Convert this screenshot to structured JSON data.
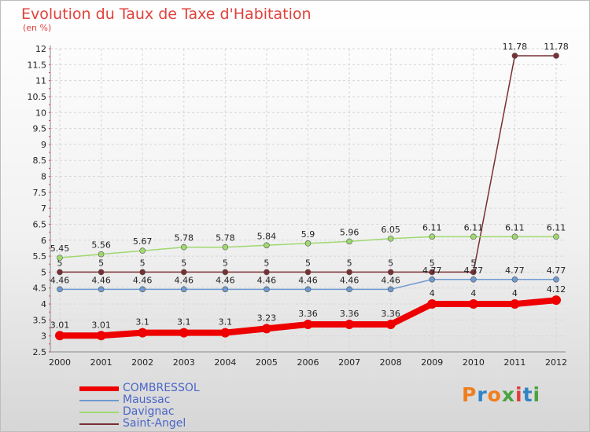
{
  "header": {
    "title": "Evolution du Taux de Taxe d'Habitation",
    "unit": "(en %)"
  },
  "logo": {
    "text": "Proxiti",
    "colors": [
      "#f07e1e",
      "#2f84c6",
      "#f07e1e",
      "#4aa33f",
      "#e23c3c",
      "#2f84c6",
      "#4aa33f"
    ]
  },
  "chart_data": {
    "type": "line",
    "x": [
      "2000",
      "2001",
      "2002",
      "2003",
      "2004",
      "2005",
      "2006",
      "2007",
      "2008",
      "2009",
      "2010",
      "2011",
      "2012"
    ],
    "yticks": [
      "2.5",
      "3",
      "3.5",
      "4",
      "4.5",
      "5",
      "5.5",
      "6",
      "6.5",
      "7",
      "7.5",
      "8",
      "8.5",
      "9",
      "9.5",
      "10",
      "10.5",
      "11",
      "11.5",
      "12"
    ],
    "ylim": [
      2.5,
      12
    ],
    "grid": true,
    "legend_position": "bottom-left",
    "series": [
      {
        "name": "COMBRESSOL",
        "color": "#ee0000",
        "width": 8,
        "marker": 6,
        "values": [
          3.01,
          3.01,
          3.1,
          3.1,
          3.1,
          3.23,
          3.36,
          3.36,
          3.36,
          4,
          4,
          4,
          4.12
        ],
        "labels": [
          "3.01",
          "3.01",
          "3.1",
          "3.1",
          "3.1",
          "3.23",
          "3.36",
          "3.36",
          "3.36",
          "4",
          "4",
          "4",
          "4.12"
        ]
      },
      {
        "name": "Maussac",
        "color": "#6e9ad0",
        "width": 1.5,
        "marker": 3.5,
        "values": [
          4.46,
          4.46,
          4.46,
          4.46,
          4.46,
          4.46,
          4.46,
          4.46,
          4.46,
          4.77,
          4.77,
          4.77,
          4.77
        ],
        "labels": [
          "4.46",
          "4.46",
          "4.46",
          "4.46",
          "4.46",
          "4.46",
          "4.46",
          "4.46",
          "4.46",
          "4.77",
          "4.77",
          "4.77",
          "4.77"
        ]
      },
      {
        "name": "Davignac",
        "color": "#9fd86f",
        "width": 1.5,
        "marker": 3.5,
        "values": [
          5.45,
          5.56,
          5.67,
          5.78,
          5.78,
          5.84,
          5.9,
          5.96,
          6.05,
          6.11,
          6.11,
          6.11,
          6.11
        ],
        "labels": [
          "5.45",
          "5.56",
          "5.67",
          "5.78",
          "5.78",
          "5.84",
          "5.9",
          "5.96",
          "6.05",
          "6.11",
          "6.11",
          "6.11",
          "6.11"
        ]
      },
      {
        "name": "Saint-Angel",
        "color": "#7a2f33",
        "width": 1.5,
        "marker": 3.5,
        "values": [
          5,
          5,
          5,
          5,
          5,
          5,
          5,
          5,
          5,
          5,
          5,
          11.78,
          11.78
        ],
        "labels": [
          "5",
          "5",
          "5",
          "5",
          "5",
          "5",
          "5",
          "5",
          "5",
          "5",
          "5",
          "11.78",
          "11.78"
        ]
      }
    ]
  }
}
